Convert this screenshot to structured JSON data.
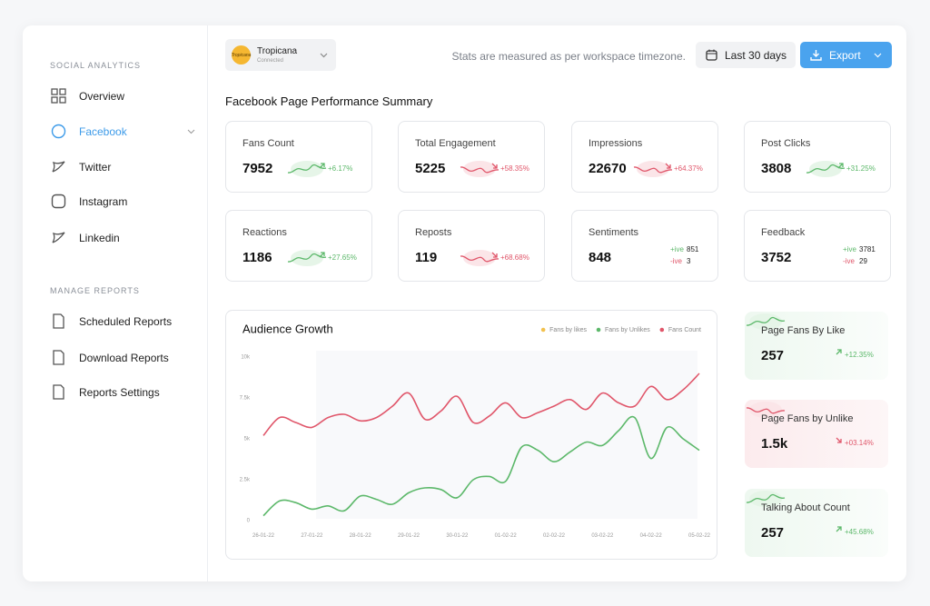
{
  "sidebar": {
    "sections": [
      {
        "title": "SOCIAL ANALYTICS",
        "items": [
          "Overview",
          "Facebook",
          "Twitter",
          "Instagram",
          "Linkedin"
        ],
        "active": 1
      },
      {
        "title": "MANAGE REPORTS",
        "items": [
          "Scheduled Reports",
          "Download Reports",
          "Reports Settings"
        ]
      }
    ]
  },
  "header": {
    "account": {
      "logo": "Tropicana",
      "name": "Tropicana",
      "status": "Connected"
    },
    "note": "Stats are measured as per workspace timezone.",
    "date_range": "Last 30 days",
    "export": "Export"
  },
  "summary": {
    "title": "Facebook Page Performance Summary",
    "cards": [
      {
        "label": "Fans Count",
        "value": "7952",
        "change": "+6.17%",
        "trend": "up"
      },
      {
        "label": "Total Engagement",
        "value": "5225",
        "change": "+58.35%",
        "trend": "down"
      },
      {
        "label": "Impressions",
        "value": "22670",
        "change": "+64.37%",
        "trend": "down"
      },
      {
        "label": "Post Clicks",
        "value": "3808",
        "change": "+31.25%",
        "trend": "up"
      },
      {
        "label": "Reactions",
        "value": "1186",
        "change": "+27.65%",
        "trend": "up"
      },
      {
        "label": "Reposts",
        "value": "119",
        "change": "+68.68%",
        "trend": "down"
      },
      {
        "label": "Sentiments",
        "value": "848",
        "breakdown": [
          {
            "label": "+ive",
            "value": "851"
          },
          {
            "label": "-ive",
            "value": "3"
          }
        ]
      },
      {
        "label": "Feedback",
        "value": "3752",
        "breakdown": [
          {
            "label": "+ive",
            "value": "3781"
          },
          {
            "label": "-ive",
            "value": "29"
          }
        ]
      }
    ]
  },
  "side_cards": [
    {
      "label": "Page Fans By Like",
      "value": "257",
      "change": "+12.35%",
      "trend": "up"
    },
    {
      "label": "Page Fans by Unlike",
      "value": "1.5k",
      "change": "+03.14%",
      "trend": "down"
    },
    {
      "label": "Talking About Count",
      "value": "257",
      "change": "+45.68%",
      "trend": "up"
    }
  ],
  "chart_data": {
    "type": "line",
    "title": "Audience Growth",
    "categories": [
      "26-01-22",
      null,
      null,
      "27-01-22",
      null,
      null,
      "28-01-22",
      null,
      null,
      "29-01-22",
      null,
      null,
      "30-01-22",
      null,
      null,
      "01-02-22",
      null,
      null,
      "02-02-22",
      null,
      null,
      "03-02-22",
      null,
      null,
      "04-02-22",
      null,
      null,
      "05-02-22"
    ],
    "series": [
      {
        "name": "Fans by likes",
        "color": "#f2c14e",
        "values": [
          null,
          null,
          null,
          null,
          null,
          null,
          null,
          null,
          null,
          null,
          null,
          null,
          null,
          null,
          null,
          null,
          null,
          null,
          null,
          null,
          null,
          null,
          null,
          null,
          null,
          null,
          null,
          null
        ]
      },
      {
        "name": "Fans by Unlikes",
        "color": "#5cb86a",
        "values": [
          300,
          1200,
          1100,
          700,
          900,
          600,
          1500,
          1300,
          1000,
          1700,
          2000,
          1900,
          1400,
          2500,
          2700,
          2400,
          4500,
          4300,
          3600,
          4200,
          4800,
          4600,
          5500,
          6300,
          3800,
          5700,
          5000,
          4300
        ]
      },
      {
        "name": "Fans Count",
        "color": "#e0566a",
        "values": [
          5200,
          6300,
          6000,
          5700,
          6300,
          6500,
          6100,
          6300,
          7000,
          7800,
          6200,
          6700,
          7600,
          6000,
          6400,
          7200,
          6300,
          6600,
          7000,
          7400,
          6800,
          7800,
          7200,
          7000,
          8200,
          7400,
          8000,
          9000
        ]
      }
    ],
    "ylim": [
      0,
      10000
    ],
    "yticks": [
      {
        "value": 0,
        "label": "0"
      },
      {
        "value": 2500,
        "label": "2.5k"
      },
      {
        "value": 5000,
        "label": "5k"
      },
      {
        "value": 7500,
        "label": "7.5k"
      },
      {
        "value": 10000,
        "label": "10k"
      }
    ],
    "grid": false
  }
}
